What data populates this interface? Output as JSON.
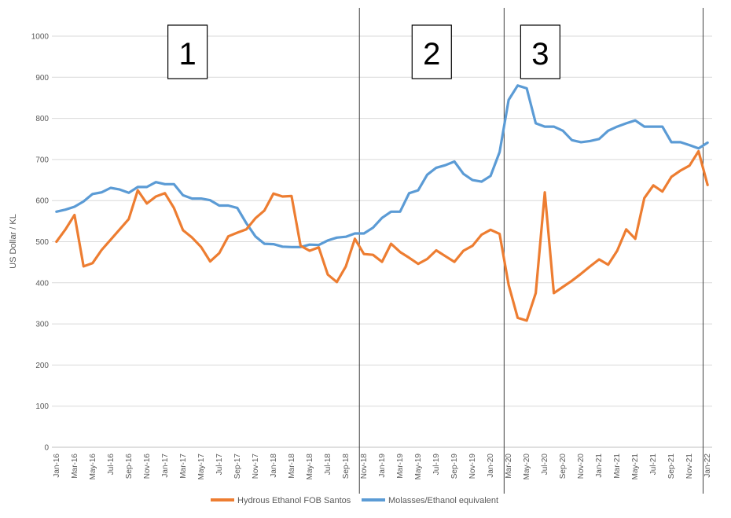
{
  "chart_data": {
    "type": "line",
    "title": "",
    "xlabel": "",
    "ylabel": "US Dollar / KL",
    "ylim": [
      0,
      1000
    ],
    "yticks": [
      0,
      100,
      200,
      300,
      400,
      500,
      600,
      700,
      800,
      900,
      1000
    ],
    "grid": true,
    "legend": "bottom",
    "x": [
      "Jan-16",
      "Feb-16",
      "Mar-16",
      "Apr-16",
      "May-16",
      "Jun-16",
      "Jul-16",
      "Aug-16",
      "Sep-16",
      "Oct-16",
      "Nov-16",
      "Dec-16",
      "Jan-17",
      "Feb-17",
      "Mar-17",
      "Apr-17",
      "May-17",
      "Jun-17",
      "Jul-17",
      "Aug-17",
      "Sep-17",
      "Oct-17",
      "Nov-17",
      "Dec-17",
      "Jan-18",
      "Feb-18",
      "Mar-18",
      "Apr-18",
      "May-18",
      "Jun-18",
      "Jul-18",
      "Aug-18",
      "Sep-18",
      "Oct-18",
      "Nov-18",
      "Dec-18",
      "Jan-19",
      "Feb-19",
      "Mar-19",
      "Apr-19",
      "May-19",
      "Jun-19",
      "Jul-19",
      "Aug-19",
      "Sep-19",
      "Oct-19",
      "Nov-19",
      "Dec-19",
      "Jan-20",
      "Feb-20",
      "Mar-20",
      "Apr-20",
      "May-20",
      "Jun-20",
      "Jul-20",
      "Aug-20",
      "Sep-20",
      "Oct-20",
      "Nov-20",
      "Dec-20",
      "Jan-21",
      "Feb-21",
      "Mar-21",
      "Apr-21",
      "May-21",
      "Jun-21",
      "Jul-21",
      "Aug-21",
      "Sep-21",
      "Oct-21",
      "Nov-21",
      "Dec-21",
      "Jan-22"
    ],
    "x_tick_labels": [
      "Jan-16",
      "Mar-16",
      "May-16",
      "Jul-16",
      "Sep-16",
      "Nov-16",
      "Jan-17",
      "Mar-17",
      "May-17",
      "Jul-17",
      "Sep-17",
      "Nov-17",
      "Jan-18",
      "Mar-18",
      "May-18",
      "Jul-18",
      "Sep-18",
      "Nov-18",
      "Jan-19",
      "Mar-19",
      "May-19",
      "Jul-19",
      "Sep-19",
      "Nov-19",
      "Jan-20",
      "Mar-20",
      "May-20",
      "Jul-20",
      "Sep-20",
      "Nov-20",
      "Jan-21",
      "Mar-21",
      "May-21",
      "Jul-21",
      "Sep-21",
      "Nov-21",
      "Jan-22"
    ],
    "series": [
      {
        "name": "Hydrous Ethanol FOB Santos",
        "color": "#ED7D31",
        "values": [
          500,
          530,
          565,
          440,
          448,
          480,
          505,
          530,
          555,
          625,
          593,
          610,
          618,
          582,
          528,
          510,
          487,
          452,
          472,
          513,
          522,
          530,
          557,
          576,
          617,
          610,
          611,
          490,
          478,
          486,
          420,
          402,
          440,
          507,
          470,
          468,
          451,
          495,
          475,
          461,
          446,
          458,
          479,
          465,
          451,
          478,
          490,
          517,
          529,
          519,
          395,
          315,
          308,
          375,
          620,
          375,
          390,
          405,
          422,
          440,
          457,
          444,
          478,
          530,
          507,
          606,
          637,
          622,
          658,
          673,
          685,
          720,
          638
        ]
      },
      {
        "name": "Molasses/Ethanol equivalent",
        "color": "#5B9BD5",
        "values": [
          573,
          578,
          585,
          598,
          616,
          620,
          631,
          627,
          619,
          633,
          633,
          645,
          640,
          640,
          613,
          605,
          605,
          601,
          588,
          588,
          582,
          545,
          513,
          495,
          494,
          488,
          487,
          487,
          493,
          492,
          503,
          510,
          512,
          520,
          520,
          534,
          558,
          573,
          573,
          618,
          625,
          663,
          680,
          686,
          695,
          665,
          650,
          646,
          660,
          718,
          845,
          880,
          873,
          788,
          780,
          780,
          770,
          747,
          742,
          745,
          750,
          770,
          780,
          788,
          795,
          780,
          780,
          780,
          742,
          742,
          735,
          727,
          741
        ]
      }
    ],
    "annotations": [
      {
        "label": "1",
        "at": "Mar-17"
      },
      {
        "label": "2",
        "at": "Jun-19"
      },
      {
        "label": "3",
        "at": "Jun-20"
      }
    ],
    "vertical_lines": [
      "Oct-18",
      "Feb-20",
      "Dec-21"
    ]
  }
}
